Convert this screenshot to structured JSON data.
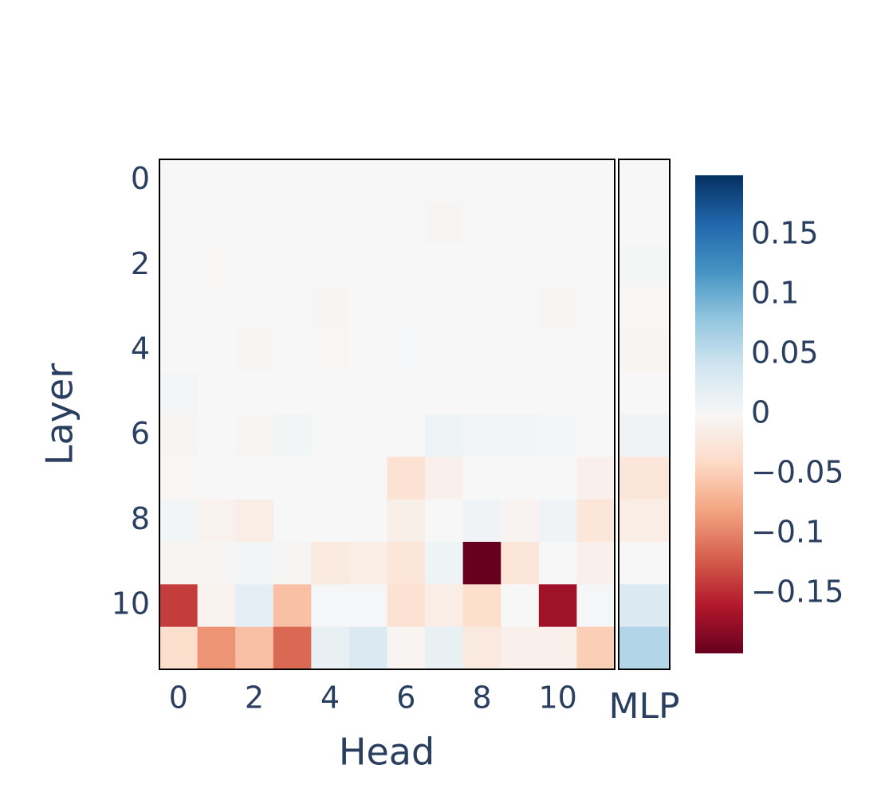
{
  "chart_data": {
    "type": "heatmap",
    "xlabel": "Head",
    "ylabel": "Layer",
    "mlp_label": "MLP",
    "x": [
      0,
      1,
      2,
      3,
      4,
      5,
      6,
      7,
      8,
      9,
      10,
      11
    ],
    "y": [
      0,
      1,
      2,
      3,
      4,
      5,
      6,
      7,
      8,
      9,
      10,
      11
    ],
    "xticks": [
      0,
      2,
      4,
      6,
      8,
      10
    ],
    "yticks": [
      0,
      2,
      4,
      6,
      8,
      10
    ],
    "z": [
      [
        0,
        0,
        0,
        0,
        0,
        0,
        0,
        0,
        0,
        0,
        0,
        0
      ],
      [
        0,
        0,
        0,
        0,
        0,
        0,
        0,
        -0.003,
        0,
        0,
        0,
        0
      ],
      [
        0,
        -0.002,
        0,
        0,
        0,
        0,
        0,
        0,
        0,
        0,
        0,
        0
      ],
      [
        0,
        0,
        0,
        0,
        -0.003,
        0,
        0,
        0,
        0,
        0,
        -0.003,
        0
      ],
      [
        0,
        0,
        -0.003,
        0,
        -0.002,
        0,
        0.002,
        0,
        0,
        0,
        0,
        0
      ],
      [
        0.004,
        0,
        0,
        0,
        0,
        0,
        0,
        0,
        0,
        0,
        0,
        0
      ],
      [
        -0.003,
        0,
        -0.004,
        0.005,
        0,
        0,
        0,
        0.01,
        0.005,
        0.005,
        0.004,
        0
      ],
      [
        -0.002,
        0,
        0,
        0,
        0,
        0,
        -0.03,
        -0.01,
        0,
        0,
        0,
        -0.01
      ],
      [
        0.005,
        -0.008,
        -0.015,
        0,
        0,
        0,
        -0.012,
        0,
        0.008,
        -0.006,
        0.008,
        -0.025
      ],
      [
        -0.005,
        -0.003,
        0.005,
        -0.003,
        -0.02,
        -0.015,
        -0.025,
        0.01,
        -0.2,
        -0.025,
        0,
        -0.01
      ],
      [
        -0.14,
        -0.008,
        0.02,
        -0.06,
        0.002,
        0.002,
        -0.03,
        -0.015,
        -0.035,
        0,
        -0.17,
        0.002
      ],
      [
        -0.035,
        -0.09,
        -0.06,
        -0.115,
        0.015,
        0.03,
        -0.005,
        0.015,
        -0.02,
        -0.01,
        -0.01,
        -0.05
      ]
    ],
    "mlp_values": [
      0,
      0,
      0.003,
      -0.002,
      -0.004,
      0,
      0.008,
      -0.025,
      -0.015,
      0,
      0.03,
      0.06
    ],
    "zlim": [
      -0.2,
      0.2
    ],
    "colorscale": [
      "#67001f",
      "#b2182b",
      "#d6604d",
      "#f4a582",
      "#fddbc7",
      "#f7f7f7",
      "#d1e5f0",
      "#92c5de",
      "#4393c3",
      "#2166ac",
      "#053061"
    ],
    "colorbar_ticks": [
      {
        "value": -0.15,
        "label": "−0.15"
      },
      {
        "value": -0.1,
        "label": "−0.1"
      },
      {
        "value": -0.05,
        "label": "−0.05"
      },
      0,
      0.05,
      0.1,
      0.15
    ]
  }
}
